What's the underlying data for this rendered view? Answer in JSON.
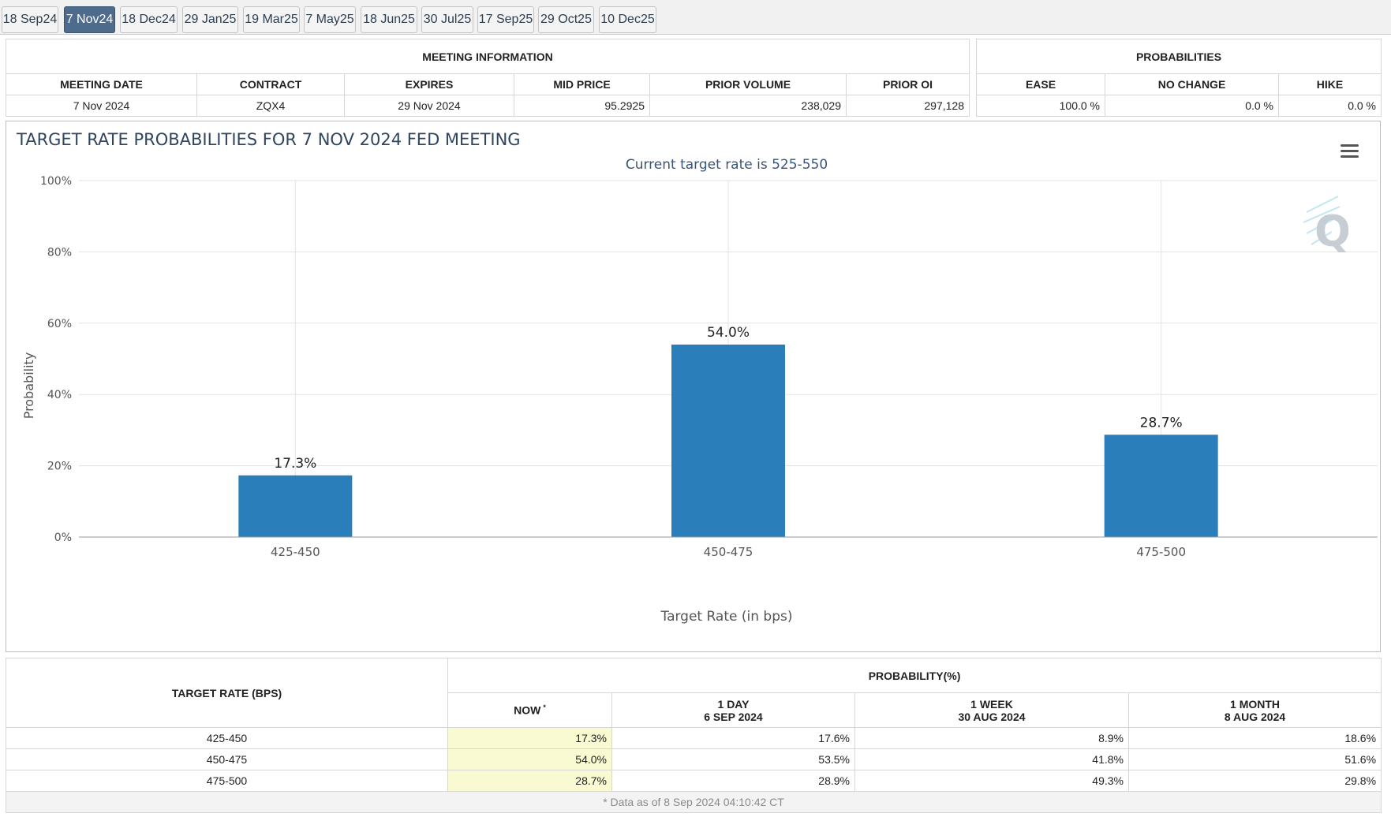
{
  "tabs": [
    {
      "label": "18 Sep24",
      "active": false
    },
    {
      "label": "7 Nov24",
      "active": true
    },
    {
      "label": "18 Dec24",
      "active": false
    },
    {
      "label": "29 Jan25",
      "active": false
    },
    {
      "label": "19 Mar25",
      "active": false
    },
    {
      "label": "7 May25",
      "active": false
    },
    {
      "label": "18 Jun25",
      "active": false
    },
    {
      "label": "30 Jul25",
      "active": false
    },
    {
      "label": "17 Sep25",
      "active": false
    },
    {
      "label": "29 Oct25",
      "active": false
    },
    {
      "label": "10 Dec25",
      "active": false
    }
  ],
  "meeting_info": {
    "title": "MEETING INFORMATION",
    "headers": [
      "MEETING DATE",
      "CONTRACT",
      "EXPIRES",
      "MID PRICE",
      "PRIOR VOLUME",
      "PRIOR OI"
    ],
    "row": [
      "7 Nov 2024",
      "ZQX4",
      "29 Nov 2024",
      "95.2925",
      "238,029",
      "297,128"
    ]
  },
  "probabilities": {
    "title": "PROBABILITIES",
    "headers": [
      "EASE",
      "NO CHANGE",
      "HIKE"
    ],
    "row": [
      "100.0 %",
      "0.0 %",
      "0.0 %"
    ]
  },
  "chart_data": {
    "type": "bar",
    "title": "TARGET RATE PROBABILITIES FOR 7 NOV 2024 FED MEETING",
    "subtitle": "Current target rate is 525-550",
    "xlabel": "Target Rate (in bps)",
    "ylabel": "Probability",
    "categories": [
      "425-450",
      "450-475",
      "475-500"
    ],
    "values": [
      17.3,
      54.0,
      28.7
    ],
    "data_labels": [
      "17.3%",
      "54.0%",
      "28.7%"
    ],
    "ylim": [
      0,
      100
    ],
    "yticks": [
      0,
      20,
      40,
      60,
      80,
      100
    ],
    "ytick_labels": [
      "0%",
      "20%",
      "40%",
      "60%",
      "80%",
      "100%"
    ],
    "grid": true,
    "bar_color": "#2a7fba"
  },
  "chart_ui": {
    "menu_icon": "hamburger-menu-icon",
    "watermark": "Q"
  },
  "history": {
    "target_rate_header": "TARGET RATE (BPS)",
    "probability_header": "PROBABILITY(%)",
    "columns": [
      {
        "title": "NOW",
        "marker": "*",
        "date": ""
      },
      {
        "title": "1 DAY",
        "date": "6 SEP 2024"
      },
      {
        "title": "1 WEEK",
        "date": "30 AUG 2024"
      },
      {
        "title": "1 MONTH",
        "date": "8 AUG 2024"
      }
    ],
    "rows": [
      {
        "rate": "425-450",
        "now": "17.3%",
        "day": "17.6%",
        "week": "8.9%",
        "month": "18.6%"
      },
      {
        "rate": "450-475",
        "now": "54.0%",
        "day": "53.5%",
        "week": "41.8%",
        "month": "51.6%"
      },
      {
        "rate": "475-500",
        "now": "28.7%",
        "day": "28.9%",
        "week": "49.3%",
        "month": "29.8%"
      }
    ],
    "footnote": "* Data as of 8 Sep 2024 04:10:42 CT",
    "highlight_color": "#fafad2"
  }
}
